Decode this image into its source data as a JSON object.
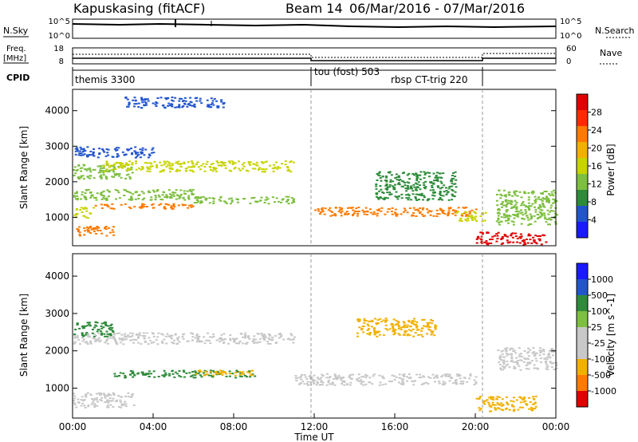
{
  "header": {
    "station": "Kapuskasing (fitACF)",
    "beam_label": "Beam 14",
    "date_range": "06/Mar/2016 - 07/Mar/2016"
  },
  "noise_panel": {
    "left_label": "N.Sky",
    "left_ticks": [
      "10^5",
      "10^0"
    ],
    "right_ticks": [
      "10^5",
      "10^0"
    ],
    "right_label": "N.Search"
  },
  "freq_panel": {
    "left_label_1": "Freq.",
    "left_label_2": "[MHz]",
    "left_ticks": [
      "18",
      "8"
    ],
    "right_ticks": [
      "60",
      "0"
    ],
    "right_label": "Nave"
  },
  "cpid_panel": {
    "label": "CPID",
    "segments": [
      "themis 3300",
      "tou (fost) 503",
      "rbsp CT-trig 220"
    ]
  },
  "colors": {
    "power": [
      "#1a1aff",
      "#2255cc",
      "#2e8b3a",
      "#7dbf3f",
      "#c8d400",
      "#f2b000",
      "#ff7a00",
      "#ff2a00",
      "#e00000"
    ],
    "velocity": [
      "#e00000",
      "#ff7a00",
      "#f2b000",
      "#c8c8c8",
      "#c8c8c8",
      "#7dbf3f",
      "#2e8b3a",
      "#2255cc",
      "#1a1aff"
    ]
  },
  "chart_data": [
    {
      "type": "heatmap",
      "name": "power",
      "xlabel": "",
      "ylabel": "Slant Range [km]",
      "yticks": [
        "1000",
        "2000",
        "3000",
        "4000"
      ],
      "ylim": [
        200,
        4600
      ],
      "xlim": [
        0,
        24
      ],
      "colorbar_label": "Power [dB]",
      "colorbar_ticks": [
        "4",
        "8",
        "12",
        "16",
        "20",
        "24",
        "28"
      ],
      "colorbar_range": [
        0,
        30
      ],
      "bands": [
        {
          "t": [
            0.0,
            3.0
          ],
          "r": [
            2100,
            2500
          ],
          "level": 10
        },
        {
          "t": [
            1.5,
            11.0
          ],
          "r": [
            2300,
            2600
          ],
          "level": 14
        },
        {
          "t": [
            0.0,
            6.0
          ],
          "r": [
            1500,
            1800
          ],
          "level": 12
        },
        {
          "t": [
            1.0,
            6.0
          ],
          "r": [
            1250,
            1400
          ],
          "level": 22
        },
        {
          "t": [
            6.0,
            11.0
          ],
          "r": [
            1400,
            1600
          ],
          "level": 10
        },
        {
          "t": [
            0.0,
            2.0
          ],
          "r": [
            500,
            800
          ],
          "level": 22
        },
        {
          "t": [
            0.0,
            1.0
          ],
          "r": [
            1000,
            1300
          ],
          "level": 14
        },
        {
          "t": [
            12.0,
            20.0
          ],
          "r": [
            1050,
            1300
          ],
          "level": 23
        },
        {
          "t": [
            15.0,
            19.0
          ],
          "r": [
            1500,
            2300
          ],
          "level": 8
        },
        {
          "t": [
            19.0,
            20.5
          ],
          "r": [
            900,
            1200
          ],
          "level": 16
        },
        {
          "t": [
            20.0,
            23.5
          ],
          "r": [
            250,
            600
          ],
          "level": 27
        },
        {
          "t": [
            21.0,
            24.0
          ],
          "r": [
            800,
            1800
          ],
          "level": 12
        },
        {
          "t": [
            0.0,
            4.0
          ],
          "r": [
            2700,
            3000
          ],
          "level": 6
        },
        {
          "t": [
            2.5,
            7.5
          ],
          "r": [
            4100,
            4400
          ],
          "level": 5
        }
      ]
    },
    {
      "type": "heatmap",
      "name": "velocity",
      "xlabel": "Time UT",
      "ylabel": "Slant Range [km]",
      "xticks": [
        "00:00",
        "04:00",
        "08:00",
        "12:00",
        "16:00",
        "20:00",
        "00:00"
      ],
      "yticks": [
        "1000",
        "2000",
        "3000",
        "4000"
      ],
      "ylim": [
        200,
        4600
      ],
      "xlim": [
        0,
        24
      ],
      "colorbar_label": "Velocity [m s^-1]",
      "colorbar_ticks": [
        "-1000",
        "-500",
        "-100",
        "-25",
        "25",
        "100",
        "500",
        "1000"
      ],
      "bands": [
        {
          "t": [
            0.0,
            11.0
          ],
          "r": [
            2200,
            2500
          ],
          "value": 0
        },
        {
          "t": [
            0.0,
            3.0
          ],
          "r": [
            500,
            900
          ],
          "value": 0
        },
        {
          "t": [
            2.0,
            9.0
          ],
          "r": [
            1300,
            1500
          ],
          "value": 150
        },
        {
          "t": [
            6.0,
            9.0
          ],
          "r": [
            1350,
            1500
          ],
          "value": -200
        },
        {
          "t": [
            0.0,
            2.0
          ],
          "r": [
            2400,
            2800
          ],
          "value": 150
        },
        {
          "t": [
            11.0,
            20.0
          ],
          "r": [
            1100,
            1400
          ],
          "value": 0
        },
        {
          "t": [
            14.0,
            18.0
          ],
          "r": [
            2400,
            2900
          ],
          "value": -200
        },
        {
          "t": [
            20.0,
            23.0
          ],
          "r": [
            400,
            800
          ],
          "value": -300
        },
        {
          "t": [
            21.0,
            24.0
          ],
          "r": [
            1500,
            2100
          ],
          "value": 0
        }
      ]
    }
  ]
}
